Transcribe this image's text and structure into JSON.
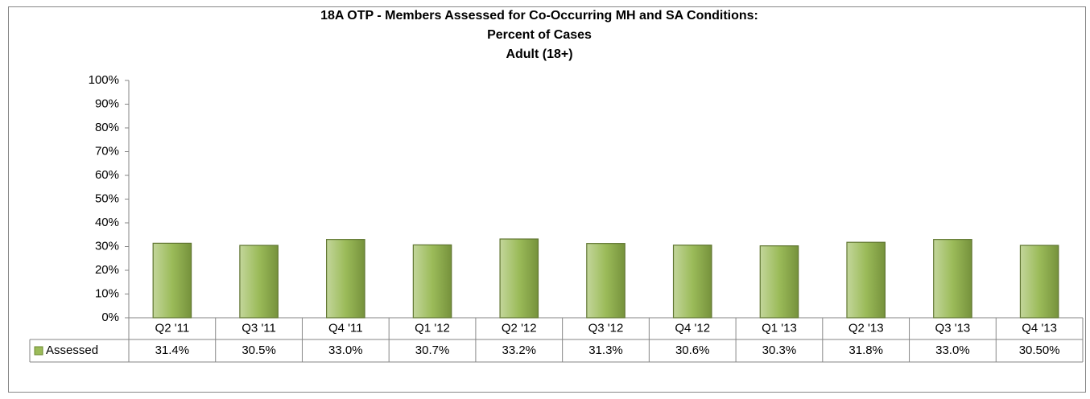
{
  "chart_data": {
    "type": "bar",
    "title": [
      "18A OTP - Members Assessed for Co-Occurring MH and SA Conditions:",
      "Percent of Cases",
      "Adult (18+)"
    ],
    "categories": [
      "Q2 '11",
      "Q3 '11",
      "Q4 '11",
      "Q1 '12",
      "Q2 '12",
      "Q3 '12",
      "Q4 '12",
      "Q1 '13",
      "Q2 '13",
      "Q3 '13",
      "Q4 '13"
    ],
    "series": [
      {
        "name": "Assessed",
        "color": "#9bbb59",
        "values": [
          31.4,
          30.5,
          33.0,
          30.7,
          33.2,
          31.3,
          30.6,
          30.3,
          31.8,
          33.0,
          30.5
        ],
        "value_labels": [
          "31.4%",
          "30.5%",
          "33.0%",
          "30.7%",
          "33.2%",
          "31.3%",
          "30.6%",
          "30.3%",
          "31.8%",
          "33.0%",
          "30.50%"
        ]
      }
    ],
    "ylim": [
      0,
      100
    ],
    "yticks": [
      {
        "value": 0,
        "label": "0%"
      },
      {
        "value": 10,
        "label": "10%"
      },
      {
        "value": 20,
        "label": "20%"
      },
      {
        "value": 30,
        "label": "30%"
      },
      {
        "value": 40,
        "label": "40%"
      },
      {
        "value": 50,
        "label": "50%"
      },
      {
        "value": 60,
        "label": "60%"
      },
      {
        "value": 70,
        "label": "70%"
      },
      {
        "value": 80,
        "label": "80%"
      },
      {
        "value": 90,
        "label": "90%"
      },
      {
        "value": 100,
        "label": "100%"
      }
    ],
    "grid": false
  }
}
